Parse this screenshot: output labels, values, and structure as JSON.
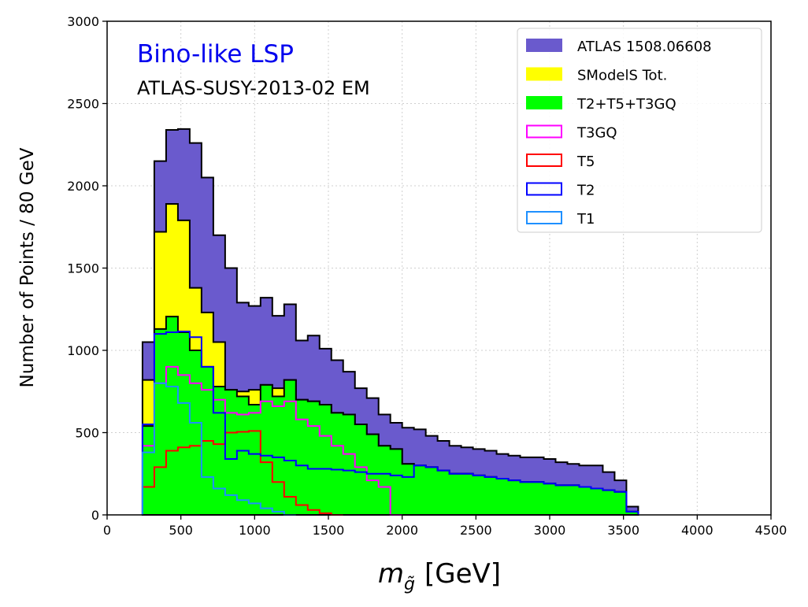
{
  "chart_data": {
    "type": "histogram",
    "ylabel": "Number of Points / 80 GeV",
    "xlabel": "[GeV]",
    "xlabel_symbol": "m",
    "xlabel_subscript": "g̃",
    "xlim": [
      0,
      4500
    ],
    "ylim": [
      0,
      3000
    ],
    "xticks": [
      0,
      500,
      1000,
      1500,
      2000,
      2500,
      3000,
      3500,
      4000,
      4500
    ],
    "yticks": [
      0,
      500,
      1000,
      1500,
      2000,
      2500,
      3000
    ],
    "grid": true,
    "legend_position": "top-right",
    "annotations": [
      {
        "text": "Bino-like LSP",
        "color": "#0000ee"
      },
      {
        "text": "ATLAS-SUSY-2013-02 EM",
        "color": "#000000"
      }
    ],
    "bin_start": 240,
    "bin_width": 80,
    "series": [
      {
        "name": "ATLAS 1508.06608",
        "style": "filled",
        "fill": "#6a5acd",
        "edge": "#000000",
        "values": [
          1050,
          2150,
          2340,
          2345,
          2260,
          2050,
          1700,
          1500,
          1290,
          1270,
          1320,
          1210,
          1280,
          1060,
          1090,
          1010,
          940,
          870,
          770,
          710,
          610,
          560,
          530,
          520,
          480,
          450,
          420,
          410,
          400,
          390,
          370,
          360,
          350,
          350,
          340,
          320,
          310,
          300,
          300,
          260,
          210,
          50
        ]
      },
      {
        "name": "SModelS Tot.",
        "style": "filled",
        "fill": "#ffff00",
        "edge": "#000000",
        "values": [
          820,
          1720,
          1890,
          1790,
          1380,
          1230,
          1050,
          760,
          750,
          760,
          790,
          770,
          820,
          700,
          690,
          670,
          620,
          610,
          550,
          490,
          420,
          400,
          310,
          300,
          290,
          270,
          250,
          250,
          240,
          230,
          220,
          210,
          200,
          200,
          190,
          180,
          180,
          170,
          160,
          150,
          140,
          20
        ]
      },
      {
        "name": "T2+T5+T3GQ",
        "style": "filled",
        "fill": "#00ff00",
        "edge": "#000000",
        "values": [
          540,
          1130,
          1205,
          1110,
          1000,
          900,
          780,
          760,
          720,
          670,
          790,
          720,
          820,
          700,
          690,
          670,
          620,
          610,
          550,
          490,
          420,
          400,
          310,
          300,
          290,
          270,
          250,
          250,
          240,
          230,
          220,
          210,
          200,
          200,
          190,
          180,
          180,
          170,
          160,
          150,
          140,
          20
        ]
      },
      {
        "name": "T3GQ",
        "style": "step",
        "edge": "#ff00ff",
        "values": [
          420,
          800,
          900,
          850,
          800,
          760,
          700,
          620,
          610,
          620,
          690,
          660,
          690,
          580,
          540,
          480,
          420,
          370,
          290,
          210,
          170,
          0
        ]
      },
      {
        "name": "T5",
        "style": "step",
        "edge": "#ff0000",
        "values": [
          170,
          290,
          390,
          410,
          420,
          450,
          430,
          500,
          505,
          510,
          320,
          200,
          110,
          60,
          30,
          10,
          0
        ]
      },
      {
        "name": "T2",
        "style": "step",
        "edge": "#0000ff",
        "values": [
          550,
          1100,
          1110,
          1115,
          1080,
          900,
          620,
          340,
          390,
          370,
          360,
          350,
          330,
          300,
          280,
          280,
          275,
          270,
          260,
          250,
          250,
          240,
          230,
          300,
          290,
          270,
          250,
          250,
          240,
          230,
          220,
          210,
          200,
          200,
          190,
          180,
          180,
          170,
          160,
          150,
          140,
          20
        ]
      },
      {
        "name": "T1",
        "style": "step",
        "edge": "#1e90ff",
        "values": [
          380,
          800,
          780,
          680,
          560,
          230,
          160,
          120,
          90,
          70,
          40,
          20,
          0
        ]
      }
    ]
  }
}
